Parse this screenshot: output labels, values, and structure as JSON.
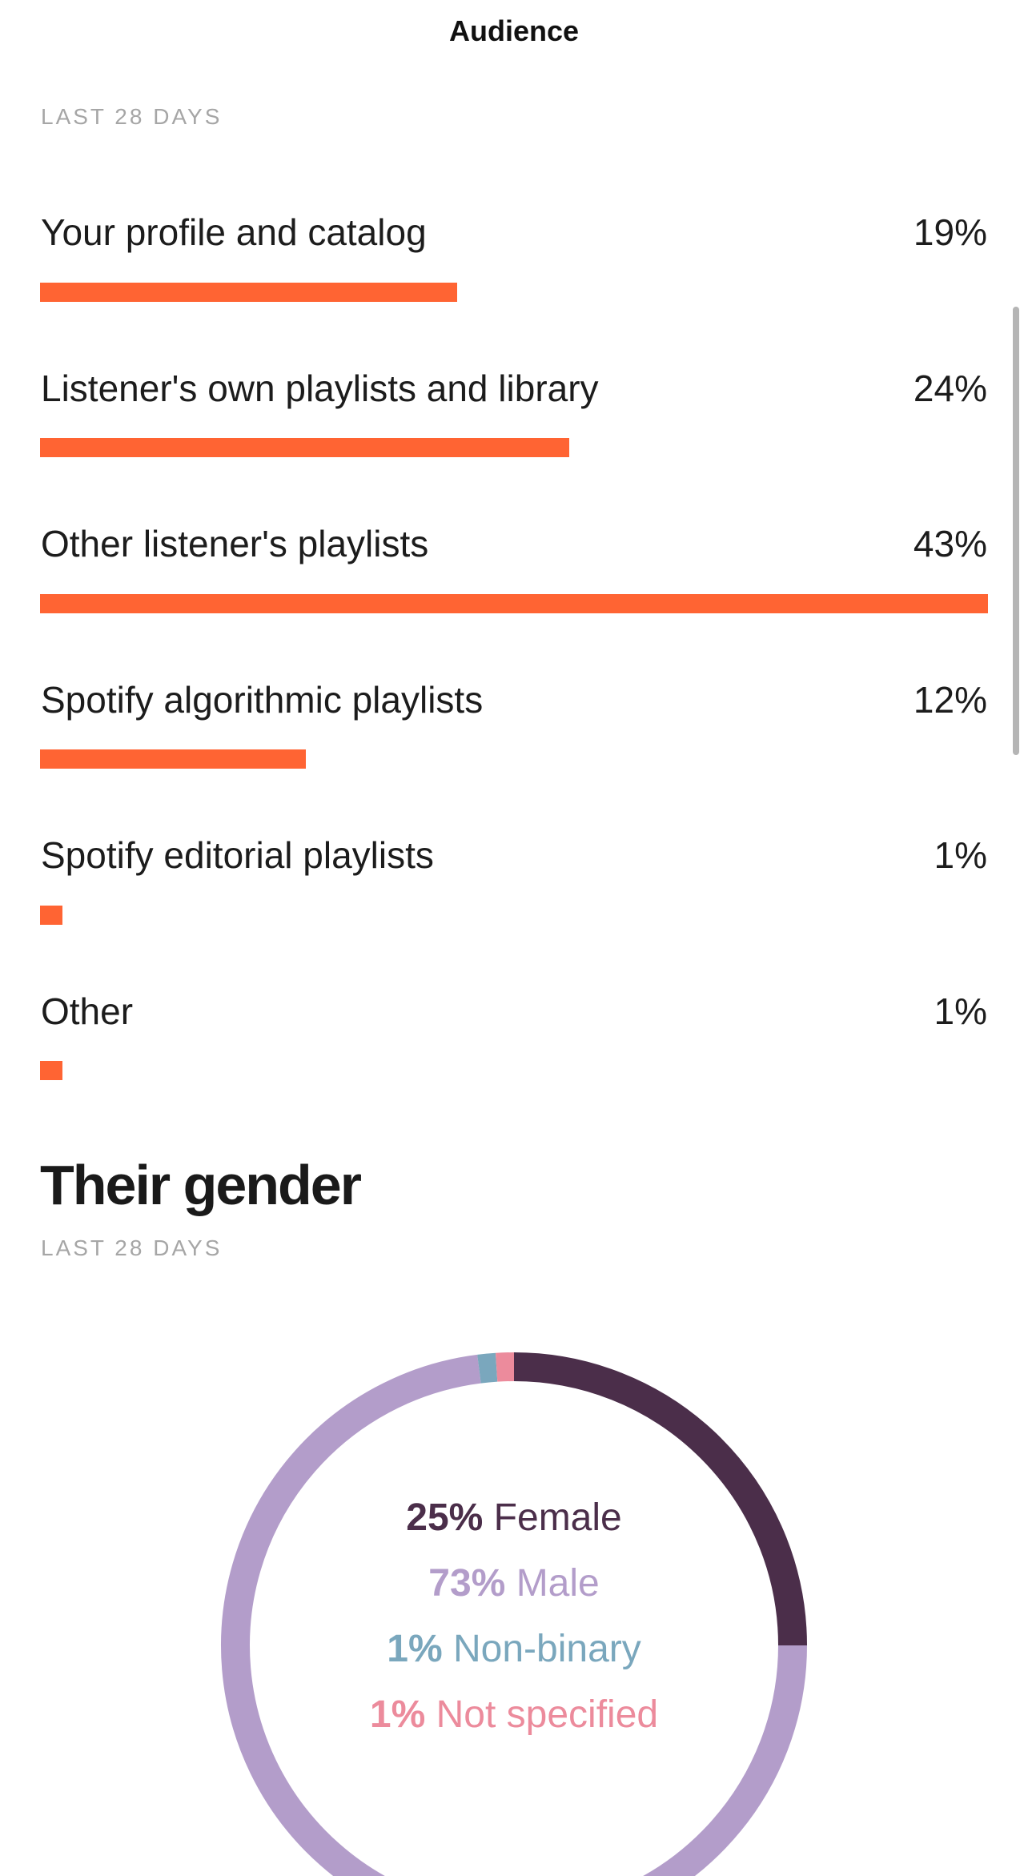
{
  "header": {
    "title": "Audience"
  },
  "sources": {
    "caption": "LAST 28 DAYS",
    "rows": [
      {
        "label": "Your profile and catalog",
        "value": "19%",
        "fraction": 0.44
      },
      {
        "label": "Listener's own playlists and library",
        "value": "24%",
        "fraction": 0.558
      },
      {
        "label": "Other listener's playlists",
        "value": "43%",
        "fraction": 1.0
      },
      {
        "label": "Spotify algorithmic playlists",
        "value": "12%",
        "fraction": 0.28
      },
      {
        "label": "Spotify editorial playlists",
        "value": "1%",
        "fraction": 0.023
      },
      {
        "label": "Other",
        "value": "1%",
        "fraction": 0.023
      }
    ],
    "bar_color": "#ff6433"
  },
  "gender": {
    "title": "Their gender",
    "caption": "LAST 28 DAYS",
    "legend": [
      {
        "percent": "25%",
        "label": "Female",
        "color": "#4b2e4a"
      },
      {
        "percent": "73%",
        "label": "Male",
        "color": "#b39dca"
      },
      {
        "percent": "1%",
        "label": "Non-binary",
        "color": "#7aa7bd"
      },
      {
        "percent": "1%",
        "label": "Not specified",
        "color": "#ec8b9c"
      }
    ]
  },
  "chart_data": {
    "type": "pie",
    "categories": [
      "Female",
      "Male",
      "Non-binary",
      "Not specified"
    ],
    "values": [
      25,
      73,
      1,
      1
    ],
    "colors": [
      "#4b2e4a",
      "#b39dca",
      "#7aa7bd",
      "#ec8b9c"
    ]
  }
}
